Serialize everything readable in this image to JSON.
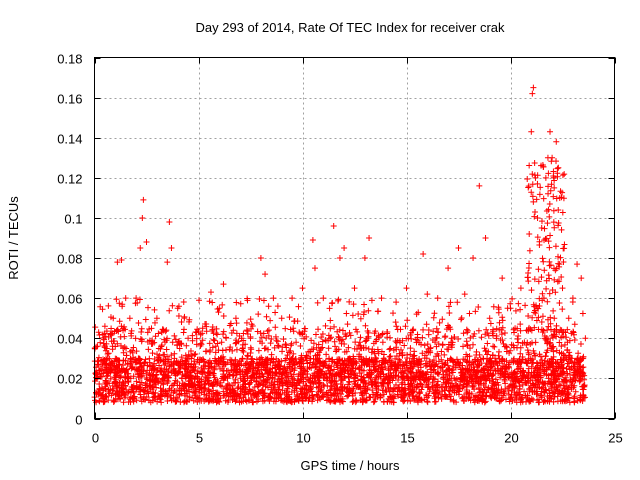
{
  "chart_data": {
    "type": "scatter",
    "title": "Day 293 of 2014, Rate Of TEC Index for receiver crak",
    "xlabel": "GPS time / hours",
    "ylabel": "ROTI / TECUs",
    "xlim": [
      0,
      25
    ],
    "ylim": [
      0,
      0.18
    ],
    "xticks": [
      0,
      5,
      10,
      15,
      20,
      25
    ],
    "xtick_labels": [
      "0",
      "5",
      "10",
      "15",
      "20",
      "25"
    ],
    "yticks": [
      0,
      0.02,
      0.04,
      0.06,
      0.08,
      0.1,
      0.12,
      0.14,
      0.16,
      0.18
    ],
    "ytick_labels": [
      "0",
      "0.02",
      "0.04",
      "0.06",
      "0.08",
      "0.1",
      "0.12",
      "0.14",
      "0.16",
      "0.18"
    ],
    "grid": true,
    "marker": "+",
    "color": "#ff0000",
    "data_extent_x": [
      0,
      23.6
    ],
    "series": [
      {
        "points": [
          [
            0.2,
            0.043
          ],
          [
            0.5,
            0.046
          ],
          [
            0.9,
            0.05
          ],
          [
            1.1,
            0.078
          ],
          [
            1.3,
            0.079
          ],
          [
            1.5,
            0.06
          ],
          [
            1.7,
            0.05
          ],
          [
            2.0,
            0.06
          ],
          [
            2.2,
            0.085
          ],
          [
            2.3,
            0.1
          ],
          [
            2.35,
            0.109
          ],
          [
            2.5,
            0.088
          ],
          [
            3.0,
            0.05
          ],
          [
            3.6,
            0.098
          ],
          [
            3.7,
            0.085
          ],
          [
            3.5,
            0.078
          ],
          [
            4.0,
            0.055
          ],
          [
            4.5,
            0.04
          ],
          [
            5.2,
            0.045
          ],
          [
            5.6,
            0.063
          ],
          [
            6.0,
            0.055
          ],
          [
            6.2,
            0.067
          ],
          [
            6.8,
            0.05
          ],
          [
            7.5,
            0.04
          ],
          [
            8.0,
            0.08
          ],
          [
            8.2,
            0.072
          ],
          [
            8.6,
            0.06
          ],
          [
            9.0,
            0.05
          ],
          [
            9.5,
            0.06
          ],
          [
            10.0,
            0.065
          ],
          [
            10.5,
            0.089
          ],
          [
            10.6,
            0.075
          ],
          [
            11.0,
            0.06
          ],
          [
            11.5,
            0.096
          ],
          [
            11.8,
            0.08
          ],
          [
            12.0,
            0.085
          ],
          [
            12.5,
            0.065
          ],
          [
            13.0,
            0.08
          ],
          [
            13.2,
            0.09
          ],
          [
            13.8,
            0.06
          ],
          [
            14.5,
            0.058
          ],
          [
            15.0,
            0.065
          ],
          [
            15.8,
            0.082
          ],
          [
            16.0,
            0.062
          ],
          [
            16.5,
            0.06
          ],
          [
            17.0,
            0.075
          ],
          [
            17.5,
            0.085
          ],
          [
            17.8,
            0.062
          ],
          [
            18.2,
            0.08
          ],
          [
            18.5,
            0.116
          ],
          [
            18.8,
            0.09
          ],
          [
            19.0,
            0.05
          ],
          [
            19.6,
            0.07
          ],
          [
            20.0,
            0.055
          ],
          [
            20.5,
            0.065
          ],
          [
            20.9,
            0.092
          ],
          [
            21.0,
            0.143
          ],
          [
            21.05,
            0.162
          ],
          [
            21.1,
            0.165
          ],
          [
            21.2,
            0.12
          ],
          [
            21.3,
            0.1
          ],
          [
            21.5,
            0.095
          ],
          [
            21.7,
            0.12
          ],
          [
            21.8,
            0.13
          ],
          [
            21.9,
            0.143
          ],
          [
            22.0,
            0.13
          ],
          [
            22.1,
            0.115
          ],
          [
            22.2,
            0.138
          ],
          [
            22.3,
            0.125
          ],
          [
            22.5,
            0.065
          ],
          [
            22.8,
            0.05
          ],
          [
            23.0,
            0.06
          ],
          [
            23.2,
            0.077
          ],
          [
            23.4,
            0.07
          ],
          [
            23.6,
            0.04
          ]
        ]
      }
    ]
  }
}
